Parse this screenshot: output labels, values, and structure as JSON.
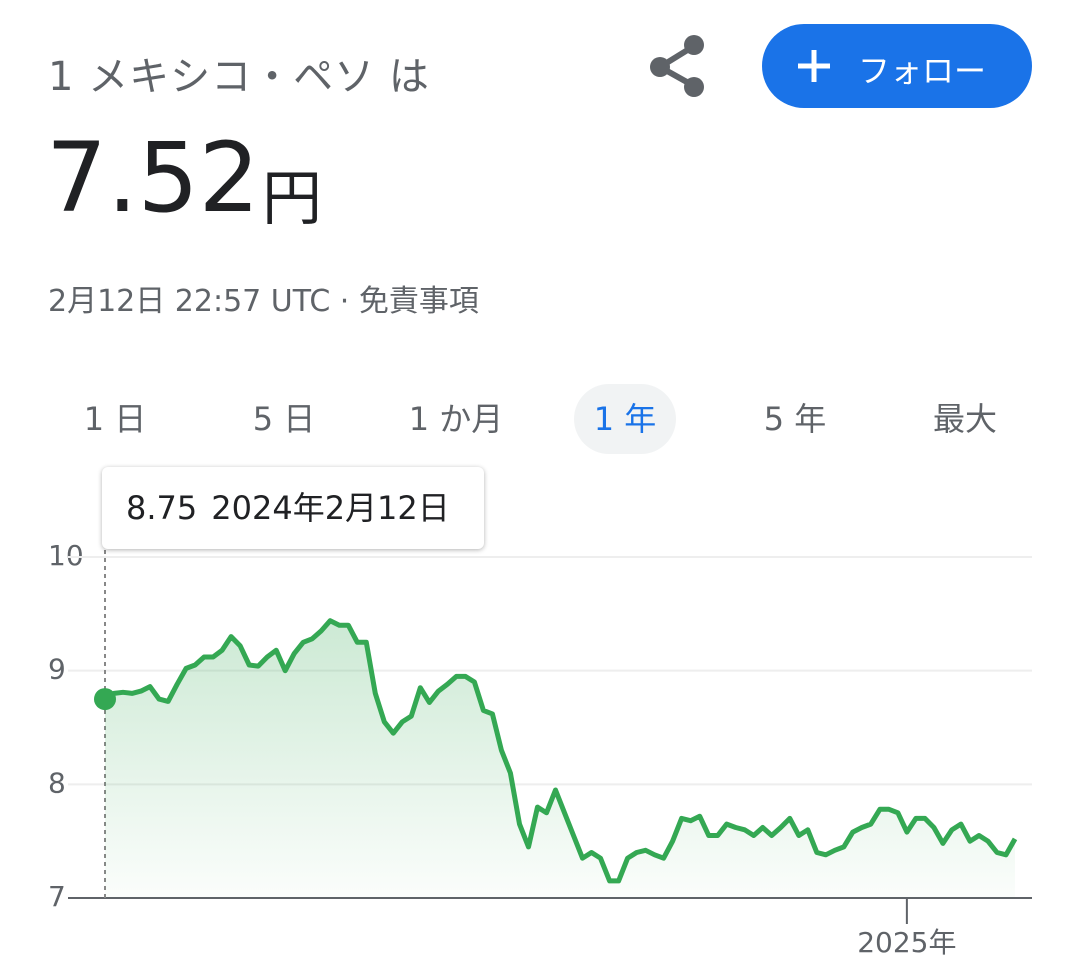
{
  "header": {
    "title": "1 メキシコ・ペソ は",
    "price": "7.52",
    "unit": "円",
    "timestamp": "2月12日 22:57 UTC · 免責事項",
    "follow": "フォロー"
  },
  "tabs": {
    "items": [
      "1 日",
      "5 日",
      "1 か月",
      "1 年",
      "5 年",
      "最大"
    ],
    "selected": 3
  },
  "tooltip": {
    "date": "2024年2月12日"
  },
  "chart_data": {
    "type": "line",
    "color": "#34a853",
    "values": [
      8.75,
      8.8,
      8.81,
      8.8,
      8.82,
      8.86,
      8.75,
      8.73,
      8.88,
      9.02,
      9.05,
      9.12,
      9.12,
      9.18,
      9.3,
      9.22,
      9.05,
      9.04,
      9.12,
      9.18,
      9.0,
      9.15,
      9.25,
      9.28,
      9.35,
      9.44,
      9.4,
      9.4,
      9.25,
      9.25,
      8.8,
      8.55,
      8.45,
      8.55,
      8.6,
      8.85,
      8.72,
      8.82,
      8.88,
      8.95,
      8.95,
      8.9,
      8.65,
      8.62,
      8.3,
      8.1,
      7.65,
      7.45,
      7.8,
      7.75,
      7.95,
      7.75,
      7.55,
      7.35,
      7.4,
      7.35,
      7.15,
      7.15,
      7.35,
      7.4,
      7.42,
      7.38,
      7.35,
      7.5,
      7.7,
      7.68,
      7.72,
      7.55,
      7.55,
      7.65,
      7.62,
      7.6,
      7.55,
      7.62,
      7.55,
      7.62,
      7.7,
      7.55,
      7.6,
      7.4,
      7.38,
      7.42,
      7.45,
      7.58,
      7.62,
      7.65,
      7.78,
      7.78,
      7.75,
      7.58,
      7.7,
      7.7,
      7.62,
      7.48,
      7.6,
      7.65,
      7.5,
      7.55,
      7.5,
      7.4,
      7.38,
      7.52
    ],
    "xlim": [
      0,
      101
    ],
    "xticks": [
      {
        "value": 89,
        "label": "2025年"
      }
    ],
    "ylim": [
      7,
      10
    ],
    "yticks": [
      7,
      8,
      9,
      10
    ],
    "grid": true
  }
}
